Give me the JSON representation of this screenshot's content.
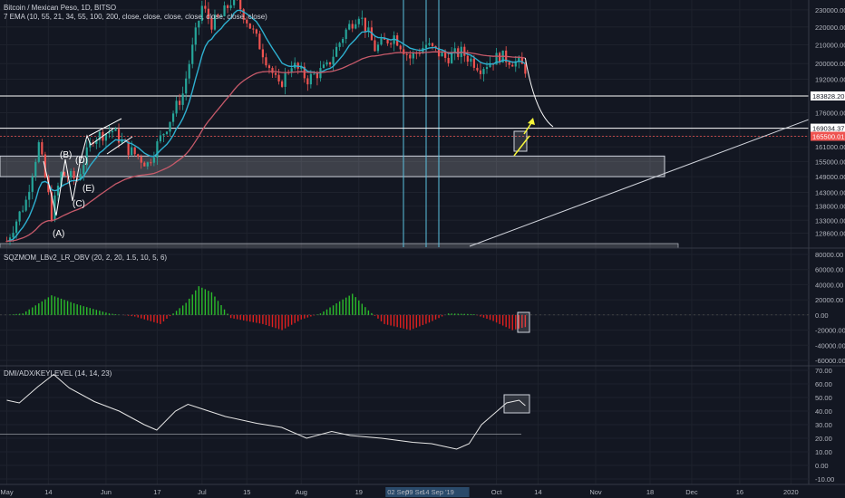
{
  "header": {
    "symbol_line": "Bitcoin / Mexican Peso, 1D, BITSO",
    "ema_line": "7 EMA (10, 55, 21, 34, 55, 100, 200, close, close, close, close, close, close, close)"
  },
  "colors": {
    "background": "#131722",
    "up": "#26a69a",
    "down": "#ef5350",
    "ema_fast": "#2eb0d0",
    "ema_slow": "#c75a6a",
    "accent_arrow": "#f5f53a",
    "mom_pos": "#2bbd2b",
    "mom_neg": "#e02020"
  },
  "chart_data": [
    {
      "type": "candlestick",
      "title": "Bitcoin / Mexican Peso, 1D, BITSO",
      "yticks": [
        "230000.00",
        "220000.00",
        "210000.00",
        "200000.00",
        "192000.00",
        "183828.20",
        "176000.00",
        "169034.37",
        "165500.01",
        "161000.00",
        "155000.00",
        "149000.00",
        "143000.00",
        "138000.00",
        "133000.00",
        "128600.00"
      ],
      "ylim": [
        124000,
        236000
      ],
      "scale": "log",
      "xticks": [
        "May",
        "14",
        "Jun",
        "17",
        "Jul",
        "15",
        "Aug",
        "19",
        "02 Sep",
        "09 Se",
        "14 Sep '19",
        "Oct",
        "14",
        "Nov",
        "18",
        "Dec",
        "16",
        "2020"
      ],
      "price_labels": [
        {
          "value": "183828.20",
          "style": "white"
        },
        {
          "value": "169034.37",
          "style": "white"
        },
        {
          "value": "165500.01",
          "style": "red"
        }
      ],
      "wave_labels": [
        "(A)",
        "(B)",
        "(C)",
        "(D)",
        "(E)"
      ],
      "series": [
        {
          "name": "EMA 10",
          "color": "#2eb0d0"
        },
        {
          "name": "EMA 55",
          "color": "#c75a6a"
        }
      ]
    },
    {
      "type": "bar",
      "title": "SQZMOM_LBv2_LR_OBV (20, 2, 20, 1.5, 10, 5, 6)",
      "yticks": [
        "80000.00",
        "60000.00",
        "40000.00",
        "20000.00",
        "0.00",
        "-20000.00",
        "-40000.00",
        "-60000.00"
      ],
      "ylim": [
        -66000,
        86000
      ]
    },
    {
      "type": "line",
      "title": "DMI/ADX/KEYLEVEL (14, 14, 23)",
      "yticks": [
        "70.00",
        "60.00",
        "50.00",
        "40.00",
        "30.00",
        "20.00",
        "10.00",
        "0.00",
        "-10.00"
      ],
      "ylim": [
        -14,
        72
      ],
      "key_level": 23
    }
  ]
}
